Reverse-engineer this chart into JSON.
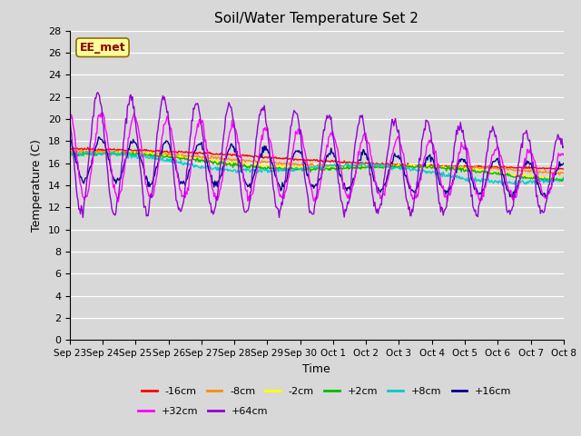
{
  "title": "Soil/Water Temperature Set 2",
  "xlabel": "Time",
  "ylabel": "Temperature (C)",
  "ylim": [
    0,
    28
  ],
  "yticks": [
    0,
    2,
    4,
    6,
    8,
    10,
    12,
    14,
    16,
    18,
    20,
    22,
    24,
    26,
    28
  ],
  "annotation_text": "EE_met",
  "annotation_color": "#8B0000",
  "annotation_bg": "#FFFF99",
  "bg_color": "#D8D8D8",
  "plot_bg": "#D8D8D8",
  "series": [
    {
      "label": "-16cm",
      "color": "#FF0000"
    },
    {
      "label": "-8cm",
      "color": "#FF8C00"
    },
    {
      "label": "-2cm",
      "color": "#FFFF00"
    },
    {
      "label": "+2cm",
      "color": "#00BB00"
    },
    {
      "label": "+8cm",
      "color": "#00CCCC"
    },
    {
      "label": "+16cm",
      "color": "#00008B"
    },
    {
      "label": "+32cm",
      "color": "#FF00FF"
    },
    {
      "label": "+64cm",
      "color": "#9400D3"
    }
  ],
  "xtick_labels": [
    "Sep 23",
    "Sep 24",
    "Sep 25",
    "Sep 26",
    "Sep 27",
    "Sep 28",
    "Sep 29",
    "Sep 30",
    "Oct 1",
    "Oct 2",
    "Oct 3",
    "Oct 4",
    "Oct 5",
    "Oct 6",
    "Oct 7",
    "Oct 8"
  ],
  "n_points": 600
}
